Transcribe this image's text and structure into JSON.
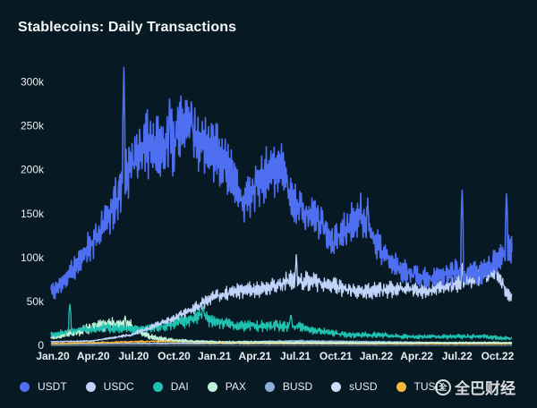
{
  "title": "Stablecoins: Daily Transactions",
  "watermark": {
    "text": "全巴财经",
    "logo": "全"
  },
  "chart_data": {
    "type": "line",
    "title": "Stablecoins: Daily Transactions",
    "xlabel": "",
    "ylabel": "",
    "ylim": [
      0,
      325000
    ],
    "grid": false,
    "legend_position": "bottom",
    "yticks": [
      {
        "value": 0,
        "label": "0"
      },
      {
        "value": 50000,
        "label": "50k"
      },
      {
        "value": 100000,
        "label": "100k"
      },
      {
        "value": 150000,
        "label": "150k"
      },
      {
        "value": 200000,
        "label": "200k"
      },
      {
        "value": 250000,
        "label": "250k"
      },
      {
        "value": 300000,
        "label": "300k"
      }
    ],
    "xticks": [
      "Jan.20",
      "Apr.20",
      "Jul.20",
      "Oct.20",
      "Jan.21",
      "Apr.21",
      "Jul.21",
      "Oct.21",
      "Jan.22",
      "Apr.22",
      "Jul.22",
      "Oct.22"
    ],
    "x_months": [
      0,
      3,
      6,
      9,
      12,
      15,
      18,
      21,
      24,
      27,
      30,
      33
    ],
    "series": [
      {
        "name": "USDT",
        "color": "#4f6ff2",
        "noise": 0.18,
        "values": [
          [
            0,
            60000
          ],
          [
            1,
            75000
          ],
          [
            2,
            95000
          ],
          [
            3,
            115000
          ],
          [
            4,
            140000
          ],
          [
            5,
            170000
          ],
          [
            6,
            210000
          ],
          [
            7,
            230000
          ],
          [
            8,
            225000
          ],
          [
            9,
            230000
          ],
          [
            10,
            260000
          ],
          [
            11,
            235000
          ],
          [
            12,
            225000
          ],
          [
            13,
            205000
          ],
          [
            14,
            165000
          ],
          [
            15,
            175000
          ],
          [
            16,
            195000
          ],
          [
            17,
            205000
          ],
          [
            18,
            160000
          ],
          [
            19,
            150000
          ],
          [
            20,
            140000
          ],
          [
            21,
            118000
          ],
          [
            22,
            135000
          ],
          [
            23,
            150000
          ],
          [
            24,
            120000
          ],
          [
            25,
            100000
          ],
          [
            26,
            85000
          ],
          [
            27,
            80000
          ],
          [
            28,
            75000
          ],
          [
            29,
            80000
          ],
          [
            30,
            85000
          ],
          [
            31,
            80000
          ],
          [
            32,
            85000
          ],
          [
            33,
            95000
          ],
          [
            34,
            110000
          ]
        ],
        "peaks": [
          [
            5.4,
            320000
          ],
          [
            8.8,
            290000
          ],
          [
            10.4,
            280000
          ],
          [
            17.5,
            200000
          ],
          [
            23.5,
            170000
          ],
          [
            30.5,
            180000
          ],
          [
            33.8,
            178000
          ]
        ]
      },
      {
        "name": "USDC",
        "color": "#bfd3fb",
        "noise": 0.16,
        "values": [
          [
            0,
            4000
          ],
          [
            3,
            5000
          ],
          [
            6,
            12000
          ],
          [
            9,
            30000
          ],
          [
            11,
            45000
          ],
          [
            12,
            55000
          ],
          [
            14,
            62000
          ],
          [
            16,
            65000
          ],
          [
            18,
            75000
          ],
          [
            20,
            72000
          ],
          [
            22,
            63000
          ],
          [
            24,
            62000
          ],
          [
            26,
            65000
          ],
          [
            28,
            62000
          ],
          [
            30,
            70000
          ],
          [
            32,
            78000
          ],
          [
            33,
            85000
          ],
          [
            34,
            55000
          ]
        ],
        "peaks": [
          [
            18.2,
            105000
          ],
          [
            30.5,
            95000
          ]
        ]
      },
      {
        "name": "DAI",
        "color": "#1fc2b1",
        "noise": 0.3,
        "values": [
          [
            0,
            12000
          ],
          [
            2,
            18000
          ],
          [
            4,
            20000
          ],
          [
            6,
            18000
          ],
          [
            8,
            20000
          ],
          [
            10,
            28000
          ],
          [
            11,
            34000
          ],
          [
            12,
            28000
          ],
          [
            14,
            22000
          ],
          [
            16,
            22000
          ],
          [
            18,
            22000
          ],
          [
            20,
            16000
          ],
          [
            22,
            12000
          ],
          [
            24,
            12000
          ],
          [
            26,
            10000
          ],
          [
            28,
            10000
          ],
          [
            30,
            10000
          ],
          [
            32,
            10000
          ],
          [
            34,
            8000
          ]
        ],
        "peaks": [
          [
            1.4,
            47000
          ],
          [
            11.3,
            46000
          ],
          [
            17.8,
            36000
          ]
        ]
      },
      {
        "name": "PAX",
        "color": "#bff3d9",
        "noise": 0.35,
        "values": [
          [
            0,
            8000
          ],
          [
            2,
            16000
          ],
          [
            4,
            24000
          ],
          [
            5,
            25000
          ],
          [
            6,
            22000
          ],
          [
            7,
            12000
          ],
          [
            8,
            8000
          ],
          [
            9,
            6000
          ],
          [
            10,
            5000
          ],
          [
            12,
            4000
          ],
          [
            18,
            3500
          ],
          [
            24,
            3000
          ],
          [
            30,
            3000
          ],
          [
            34,
            3000
          ]
        ],
        "peaks": [
          [
            5.5,
            34000
          ]
        ]
      },
      {
        "name": "BUSD",
        "color": "#8eaed6",
        "noise": 0.25,
        "values": [
          [
            0,
            1000
          ],
          [
            12,
            3000
          ],
          [
            18,
            5000
          ],
          [
            24,
            4000
          ],
          [
            30,
            3000
          ],
          [
            34,
            3000
          ]
        ],
        "peaks": []
      },
      {
        "name": "sUSD",
        "color": "#cde0fb",
        "noise": 0.25,
        "values": [
          [
            0,
            1500
          ],
          [
            12,
            2000
          ],
          [
            24,
            1500
          ],
          [
            34,
            1500
          ]
        ],
        "peaks": []
      },
      {
        "name": "TUSD",
        "color": "#f7b93b",
        "noise": 0.3,
        "values": [
          [
            0,
            2000
          ],
          [
            6,
            4000
          ],
          [
            9,
            5000
          ],
          [
            12,
            3000
          ],
          [
            20,
            2500
          ],
          [
            30,
            2000
          ],
          [
            34,
            2000
          ]
        ],
        "peaks": []
      }
    ]
  }
}
